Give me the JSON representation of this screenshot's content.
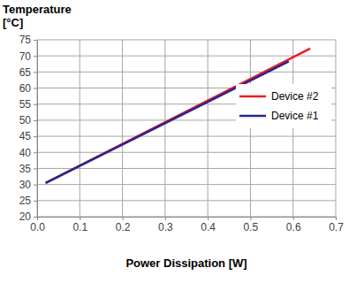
{
  "chart_data": {
    "type": "line",
    "ylabel": "Temperature [°C]",
    "xlabel": "Power Dissipation [W]",
    "x": [
      0.02,
      0.59,
      0.64
    ],
    "series": [
      {
        "name": "Device #2",
        "color": "#ee1c25",
        "values": [
          30.5,
          68.9,
          72.3
        ]
      },
      {
        "name": "Device #1",
        "color": "#262690",
        "values": [
          30.5,
          68.3,
          null
        ]
      }
    ],
    "xlim": [
      0,
      0.7
    ],
    "xticks": [
      {
        "value": 0,
        "label": "0.0"
      },
      0.1,
      0.2,
      0.3,
      0.4,
      0.5,
      0.6,
      0.7
    ],
    "ylim": [
      20,
      75
    ],
    "yticks": [
      20,
      25,
      30,
      35,
      40,
      45,
      50,
      55,
      60,
      65,
      70,
      75
    ],
    "grid": true,
    "legend": "right"
  }
}
